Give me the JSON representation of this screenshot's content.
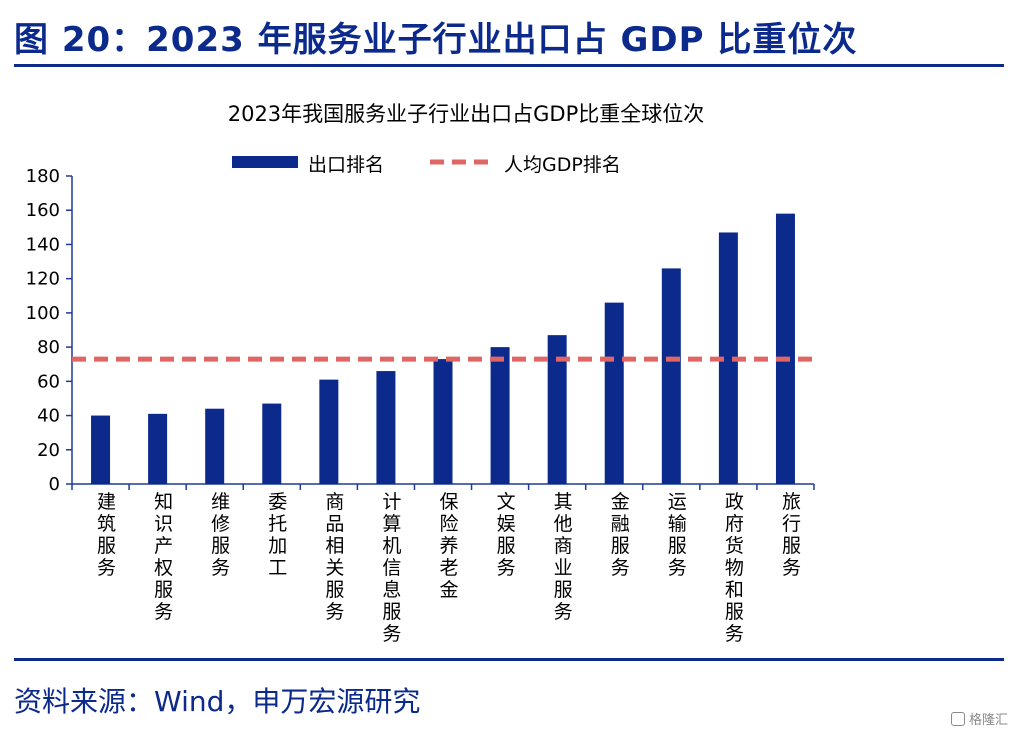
{
  "figure_title": "图 20：2023 年服务业子行业出口占 GDP 比重位次",
  "source_note": "资料来源：Wind，申万宏源研究",
  "watermark": "格隆汇",
  "chart_data": {
    "type": "bar",
    "title": "2023年我国服务业子行业出口占GDP比重全球位次",
    "categories": [
      "建筑服务",
      "知识产权服务",
      "维修服务",
      "委托加工",
      "商品相关服务",
      "计算机信息服务",
      "保险养老金",
      "文娱服务",
      "其他商业服务",
      "金融服务",
      "运输服务",
      "政府货物和服务",
      "旅行服务"
    ],
    "series": [
      {
        "name": "出口排名",
        "type": "bar",
        "color": "#0b2a8c",
        "values": [
          40,
          41,
          44,
          47,
          61,
          66,
          73,
          80,
          87,
          106,
          126,
          147,
          158
        ]
      },
      {
        "name": "人均GDP排名",
        "type": "line",
        "style": "dashed",
        "color": "#e06666",
        "values": [
          73,
          73,
          73,
          73,
          73,
          73,
          73,
          73,
          73,
          73,
          73,
          73,
          73
        ]
      }
    ],
    "ylim": [
      0,
      180
    ],
    "yticks": [
      0,
      20,
      40,
      60,
      80,
      100,
      120,
      140,
      160,
      180
    ],
    "xlabel": "",
    "ylabel": "",
    "legend_position": "top",
    "grid": false
  }
}
